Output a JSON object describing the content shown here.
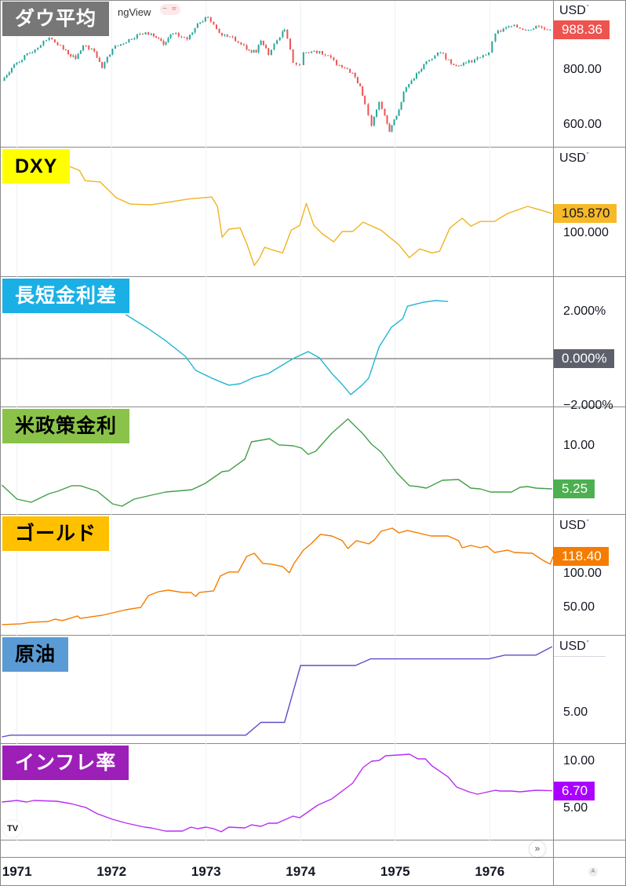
{
  "watermark": "ngView",
  "header_pill": {
    "icons": [
      "minus-icon",
      "approx-icon"
    ],
    "symbols": [
      "−",
      "≈"
    ]
  },
  "time_axis": {
    "labels": [
      {
        "value": 1971,
        "label": "1971"
      },
      {
        "value": 1972,
        "label": "1972"
      },
      {
        "value": 1973,
        "label": "1973"
      },
      {
        "value": 1974,
        "label": "1974"
      },
      {
        "value": 1975,
        "label": "1975"
      },
      {
        "value": 1976,
        "label": "1976"
      }
    ],
    "xlim": [
      1970.82,
      1976.67
    ],
    "scroll_button": "»",
    "auto_button": "A",
    "logo": "TV"
  },
  "chart_data": [
    {
      "type": "candlestick",
      "title": "ダウ平均",
      "label_bg": "#777777",
      "label_fg": "#ffffff",
      "up_color": "#26a69a",
      "down_color": "#ef5350",
      "scale": "log",
      "ylim": [
        532,
        1154
      ],
      "unit": "USD",
      "yticks": [
        {
          "value": 800,
          "label": "800.00"
        },
        {
          "value": 600,
          "label": "600.00"
        }
      ],
      "last": {
        "value": 988.36,
        "label": "988.36",
        "bg": "#ef5350",
        "fg": "#ffffff"
      },
      "points": [
        [
          1970.84,
          755
        ],
        [
          1970.97,
          823
        ],
        [
          1971.19,
          890
        ],
        [
          1971.34,
          947
        ],
        [
          1971.49,
          890
        ],
        [
          1971.62,
          847
        ],
        [
          1971.7,
          909
        ],
        [
          1971.79,
          894
        ],
        [
          1971.9,
          807
        ],
        [
          1972.01,
          894
        ],
        [
          1972.3,
          967
        ],
        [
          1972.42,
          967
        ],
        [
          1972.55,
          913
        ],
        [
          1972.65,
          967
        ],
        [
          1972.8,
          939
        ],
        [
          1972.91,
          1020
        ],
        [
          1973.02,
          1054
        ],
        [
          1973.14,
          971
        ],
        [
          1973.28,
          951
        ],
        [
          1973.43,
          890
        ],
        [
          1973.53,
          876
        ],
        [
          1973.58,
          932
        ],
        [
          1973.66,
          865
        ],
        [
          1973.81,
          979
        ],
        [
          1973.83,
          987
        ],
        [
          1973.92,
          830
        ],
        [
          1973.99,
          820
        ],
        [
          1974.03,
          876
        ],
        [
          1974.2,
          883
        ],
        [
          1974.41,
          820
        ],
        [
          1974.55,
          787
        ],
        [
          1974.63,
          734
        ],
        [
          1974.68,
          668
        ],
        [
          1974.75,
          597
        ],
        [
          1974.83,
          676
        ],
        [
          1974.89,
          630
        ],
        [
          1974.94,
          578
        ],
        [
          1975.04,
          649
        ],
        [
          1975.09,
          713
        ],
        [
          1975.2,
          765
        ],
        [
          1975.33,
          837
        ],
        [
          1975.48,
          876
        ],
        [
          1975.62,
          820
        ],
        [
          1975.75,
          830
        ],
        [
          1975.9,
          854
        ],
        [
          1975.99,
          876
        ],
        [
          1976.06,
          967
        ],
        [
          1976.23,
          1007
        ],
        [
          1976.41,
          987
        ],
        [
          1976.49,
          1007
        ],
        [
          1976.64,
          988.36
        ]
      ]
    },
    {
      "type": "line",
      "title": "DXY",
      "label_bg": "#ffff00",
      "label_fg": "#000000",
      "color": "#f0b323",
      "scale": "linear",
      "ylim": [
        86.9,
        125.6
      ],
      "unit": "USD",
      "yticks": [
        {
          "value": 100,
          "label": "100.000"
        }
      ],
      "last": {
        "value": 105.87,
        "label": "105.870",
        "bg": "#f7b928",
        "fg": "#131722"
      },
      "points": [
        [
          1971.55,
          120.0
        ],
        [
          1971.66,
          118.8
        ],
        [
          1971.72,
          115.7
        ],
        [
          1971.88,
          115.3
        ],
        [
          1972.05,
          110.6
        ],
        [
          1972.2,
          108.7
        ],
        [
          1972.42,
          108.5
        ],
        [
          1972.84,
          110.3
        ],
        [
          1973.06,
          110.8
        ],
        [
          1973.12,
          108.0
        ],
        [
          1973.17,
          98.8
        ],
        [
          1973.24,
          101.2
        ],
        [
          1973.36,
          101.6
        ],
        [
          1973.43,
          96.9
        ],
        [
          1973.51,
          90.4
        ],
        [
          1973.56,
          92.3
        ],
        [
          1973.62,
          95.8
        ],
        [
          1973.69,
          95.1
        ],
        [
          1973.81,
          94.1
        ],
        [
          1973.9,
          100.9
        ],
        [
          1973.99,
          102.3
        ],
        [
          1974.06,
          108.9
        ],
        [
          1974.14,
          102.3
        ],
        [
          1974.23,
          99.8
        ],
        [
          1974.35,
          97.4
        ],
        [
          1974.44,
          100.5
        ],
        [
          1974.55,
          100.5
        ],
        [
          1974.66,
          103.3
        ],
        [
          1974.85,
          100.9
        ],
        [
          1975.04,
          96.5
        ],
        [
          1975.15,
          92.7
        ],
        [
          1975.26,
          95.3
        ],
        [
          1975.39,
          94.1
        ],
        [
          1975.47,
          94.6
        ],
        [
          1975.58,
          101.6
        ],
        [
          1975.71,
          104.5
        ],
        [
          1975.8,
          102.1
        ],
        [
          1975.9,
          103.5
        ],
        [
          1976.05,
          103.5
        ],
        [
          1976.19,
          105.9
        ],
        [
          1976.4,
          108.0
        ],
        [
          1976.53,
          107.0
        ],
        [
          1976.66,
          105.87
        ]
      ]
    },
    {
      "type": "line",
      "title": "長短金利差",
      "label_bg": "#1ab0e6",
      "label_fg": "#ffffff",
      "color": "#22b5d3",
      "scale": "linear",
      "ylim": [
        -2.07,
        3.47
      ],
      "unit": "",
      "zero_line": true,
      "yticks": [
        {
          "value": 2,
          "label": "2.000%"
        },
        {
          "value": -2,
          "label": "−2.000%"
        }
      ],
      "last": {
        "value": 0,
        "label": "0.000%",
        "bg": "#5d606b",
        "fg": "#ffffff"
      },
      "points": [
        [
          1972.15,
          1.87
        ],
        [
          1972.39,
          1.27
        ],
        [
          1972.57,
          0.77
        ],
        [
          1972.78,
          0.1
        ],
        [
          1972.89,
          -0.5
        ],
        [
          1973.06,
          -0.83
        ],
        [
          1973.24,
          -1.13
        ],
        [
          1973.36,
          -1.07
        ],
        [
          1973.51,
          -0.8
        ],
        [
          1973.66,
          -0.63
        ],
        [
          1973.92,
          0.0
        ],
        [
          1974.08,
          0.3
        ],
        [
          1974.2,
          0.03
        ],
        [
          1974.33,
          -0.63
        ],
        [
          1974.44,
          -1.1
        ],
        [
          1974.53,
          -1.53
        ],
        [
          1974.65,
          -1.13
        ],
        [
          1974.72,
          -0.83
        ],
        [
          1974.83,
          0.5
        ],
        [
          1974.96,
          1.33
        ],
        [
          1975.08,
          1.7
        ],
        [
          1975.13,
          2.23
        ],
        [
          1975.3,
          2.4
        ],
        [
          1975.43,
          2.47
        ],
        [
          1975.56,
          2.43
        ]
      ]
    },
    {
      "type": "line",
      "title": "米政策金利",
      "label_bg": "#8bc34a",
      "label_fg": "#000000",
      "color": "#43a047",
      "scale": "linear",
      "ylim": [
        2.4,
        14.23
      ],
      "unit": "",
      "yticks": [
        {
          "value": 10,
          "label": "10.00"
        }
      ],
      "last": {
        "value": 5.25,
        "label": "5.25",
        "bg": "#4caf50",
        "fg": "#ffffff"
      },
      "points": [
        [
          1970.84,
          5.68
        ],
        [
          1971.0,
          4.13
        ],
        [
          1971.15,
          3.78
        ],
        [
          1971.34,
          4.73
        ],
        [
          1971.43,
          4.99
        ],
        [
          1971.58,
          5.6
        ],
        [
          1971.67,
          5.6
        ],
        [
          1971.85,
          4.99
        ],
        [
          1972.01,
          3.61
        ],
        [
          1972.11,
          3.35
        ],
        [
          1972.24,
          4.13
        ],
        [
          1972.42,
          4.56
        ],
        [
          1972.57,
          4.9
        ],
        [
          1972.76,
          5.08
        ],
        [
          1972.85,
          5.16
        ],
        [
          1972.99,
          5.85
        ],
        [
          1973.17,
          7.15
        ],
        [
          1973.24,
          7.24
        ],
        [
          1973.41,
          8.53
        ],
        [
          1973.48,
          10.43
        ],
        [
          1973.58,
          10.6
        ],
        [
          1973.67,
          10.78
        ],
        [
          1973.77,
          10.09
        ],
        [
          1973.92,
          10.0
        ],
        [
          1974.01,
          9.74
        ],
        [
          1974.08,
          9.05
        ],
        [
          1974.16,
          9.4
        ],
        [
          1974.33,
          11.38
        ],
        [
          1974.5,
          12.94
        ],
        [
          1974.66,
          11.3
        ],
        [
          1974.75,
          10.17
        ],
        [
          1974.85,
          9.31
        ],
        [
          1975.02,
          6.98
        ],
        [
          1975.15,
          5.6
        ],
        [
          1975.24,
          5.51
        ],
        [
          1975.33,
          5.34
        ],
        [
          1975.5,
          6.2
        ],
        [
          1975.67,
          6.29
        ],
        [
          1975.8,
          5.34
        ],
        [
          1975.9,
          5.25
        ],
        [
          1976.01,
          4.9
        ],
        [
          1976.23,
          4.9
        ],
        [
          1976.32,
          5.42
        ],
        [
          1976.4,
          5.51
        ],
        [
          1976.49,
          5.34
        ],
        [
          1976.66,
          5.25
        ]
      ]
    },
    {
      "type": "line",
      "title": "ゴールド",
      "label_bg": "#ffc000",
      "label_fg": "#000000",
      "color": "#f57c00",
      "scale": "log",
      "ylim": [
        30.9,
        241
      ],
      "unit": "USD",
      "yticks": [
        {
          "value": 100,
          "label": "100.00"
        },
        {
          "value": 50,
          "label": "50.00"
        }
      ],
      "last": {
        "value": 118.4,
        "label": "118.40",
        "bg": "#f57c00",
        "fg": "#ffffff"
      },
      "points": [
        [
          1970.84,
          37.3
        ],
        [
          1971.04,
          37.8
        ],
        [
          1971.15,
          38.8
        ],
        [
          1971.33,
          39.3
        ],
        [
          1971.4,
          40.9
        ],
        [
          1971.48,
          39.9
        ],
        [
          1971.64,
          43.2
        ],
        [
          1971.67,
          41.5
        ],
        [
          1971.9,
          43.7
        ],
        [
          1972.01,
          45.5
        ],
        [
          1972.15,
          48.0
        ],
        [
          1972.31,
          50.0
        ],
        [
          1972.39,
          61.1
        ],
        [
          1972.5,
          65.3
        ],
        [
          1972.6,
          67.0
        ],
        [
          1972.75,
          64.4
        ],
        [
          1972.84,
          64.4
        ],
        [
          1972.89,
          60.2
        ],
        [
          1972.93,
          64.4
        ],
        [
          1973.08,
          66.2
        ],
        [
          1973.15,
          85.2
        ],
        [
          1973.24,
          91.1
        ],
        [
          1973.34,
          91.1
        ],
        [
          1973.43,
          118.9
        ],
        [
          1973.51,
          125.4
        ],
        [
          1973.6,
          105.5
        ],
        [
          1973.69,
          104.1
        ],
        [
          1973.81,
          100.0
        ],
        [
          1973.88,
          89.9
        ],
        [
          1973.93,
          105.5
        ],
        [
          1974.03,
          132.3
        ],
        [
          1974.11,
          147.2
        ],
        [
          1974.21,
          172.8
        ],
        [
          1974.33,
          168.2
        ],
        [
          1974.44,
          155.3
        ],
        [
          1974.5,
          135.9
        ],
        [
          1974.59,
          155.3
        ],
        [
          1974.72,
          147.2
        ],
        [
          1974.78,
          157.3
        ],
        [
          1974.85,
          182.2
        ],
        [
          1974.97,
          192.2
        ],
        [
          1975.04,
          177.4
        ],
        [
          1975.13,
          184.7
        ],
        [
          1975.38,
          168.2
        ],
        [
          1975.56,
          168.2
        ],
        [
          1975.67,
          155.3
        ],
        [
          1975.71,
          137.7
        ],
        [
          1975.8,
          143.3
        ],
        [
          1975.9,
          137.7
        ],
        [
          1975.97,
          141.5
        ],
        [
          1976.05,
          127.1
        ],
        [
          1976.19,
          132.3
        ],
        [
          1976.26,
          127.1
        ],
        [
          1976.45,
          125.4
        ],
        [
          1976.55,
          112.7
        ],
        [
          1976.64,
          104.1
        ],
        [
          1976.67,
          118.4
        ]
      ]
    },
    {
      "type": "line",
      "title": "原油",
      "label_bg": "#5b9bd5",
      "label_fg": "#000000",
      "color": "#5a4fc8",
      "step": true,
      "scale": "log",
      "ylim": [
        3.12,
        15.8
      ],
      "unit": "USD",
      "yticks": [
        {
          "value": 5,
          "label": "5.00"
        }
      ],
      "last": null,
      "points": [
        [
          1970.84,
          3.47
        ],
        [
          1970.93,
          3.56
        ],
        [
          1973.42,
          3.56
        ],
        [
          1973.58,
          4.31
        ],
        [
          1973.83,
          4.31
        ],
        [
          1974.0,
          10.11
        ],
        [
          1974.58,
          10.11
        ],
        [
          1974.74,
          11.16
        ],
        [
          1975.99,
          11.16
        ],
        [
          1976.16,
          11.8
        ],
        [
          1976.49,
          11.8
        ],
        [
          1976.66,
          13.4
        ]
      ]
    },
    {
      "type": "line",
      "title": "インフレ率",
      "label_bg": "#9c1fb8",
      "label_fg": "#ffffff",
      "color": "#b72ff2",
      "scale": "linear",
      "ylim": [
        1.14,
        11.93
      ],
      "unit": "",
      "yticks": [
        {
          "value": 10,
          "label": "10.00"
        },
        {
          "value": 5,
          "label": "5.00"
        }
      ],
      "last": {
        "value": 6.7,
        "label": "6.70",
        "bg": "#aa00ff",
        "fg": "#ffffff"
      },
      "points": [
        [
          1970.84,
          5.44
        ],
        [
          1971.0,
          5.61
        ],
        [
          1971.1,
          5.44
        ],
        [
          1971.18,
          5.61
        ],
        [
          1971.42,
          5.53
        ],
        [
          1971.57,
          5.26
        ],
        [
          1971.73,
          4.82
        ],
        [
          1971.85,
          4.12
        ],
        [
          1972.01,
          3.51
        ],
        [
          1972.16,
          3.07
        ],
        [
          1972.35,
          2.63
        ],
        [
          1972.42,
          2.54
        ],
        [
          1972.57,
          2.19
        ],
        [
          1972.75,
          2.19
        ],
        [
          1972.84,
          2.63
        ],
        [
          1972.91,
          2.46
        ],
        [
          1973.0,
          2.63
        ],
        [
          1973.08,
          2.46
        ],
        [
          1973.16,
          2.11
        ],
        [
          1973.24,
          2.63
        ],
        [
          1973.41,
          2.54
        ],
        [
          1973.48,
          2.89
        ],
        [
          1973.58,
          2.72
        ],
        [
          1973.66,
          3.07
        ],
        [
          1973.75,
          3.07
        ],
        [
          1973.92,
          3.86
        ],
        [
          1973.99,
          3.68
        ],
        [
          1974.18,
          5.09
        ],
        [
          1974.33,
          5.79
        ],
        [
          1974.55,
          7.54
        ],
        [
          1974.66,
          9.3
        ],
        [
          1974.75,
          10.0
        ],
        [
          1974.83,
          10.09
        ],
        [
          1974.9,
          10.61
        ],
        [
          1975.04,
          10.7
        ],
        [
          1975.15,
          10.79
        ],
        [
          1975.24,
          10.26
        ],
        [
          1975.32,
          10.26
        ],
        [
          1975.39,
          9.47
        ],
        [
          1975.56,
          8.25
        ],
        [
          1975.65,
          7.11
        ],
        [
          1975.78,
          6.58
        ],
        [
          1975.87,
          6.32
        ],
        [
          1976.06,
          6.75
        ],
        [
          1976.11,
          6.67
        ],
        [
          1976.23,
          6.67
        ],
        [
          1976.32,
          6.58
        ],
        [
          1976.49,
          6.75
        ],
        [
          1976.66,
          6.7
        ]
      ]
    }
  ]
}
